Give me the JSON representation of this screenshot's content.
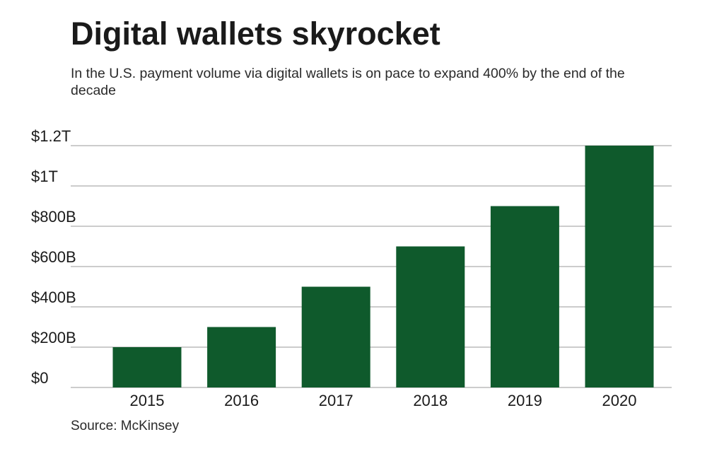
{
  "title": "Digital wallets skyrocket",
  "subtitle": "In the U.S. payment volume via digital wallets is on pace to expand 400% by the end of the decade",
  "source": "Source: McKinsey",
  "colors": {
    "bar": "#0f5a2c",
    "grid": "#9a9a9a",
    "text": "#1a1a1a"
  },
  "chart_data": {
    "type": "bar",
    "categories": [
      "2015",
      "2016",
      "2017",
      "2018",
      "2019",
      "2020"
    ],
    "values": [
      200,
      300,
      500,
      700,
      900,
      1200
    ],
    "unit": "billions of dollars",
    "ylim": [
      0,
      1200
    ],
    "yticks": [
      0,
      200,
      400,
      600,
      800,
      1000,
      1200
    ],
    "ytick_labels": [
      "$0",
      "$200B",
      "$400B",
      "$600B",
      "$800B",
      "$1T",
      "$1.2T"
    ],
    "xlabel": "",
    "ylabel": "",
    "grid": true
  }
}
